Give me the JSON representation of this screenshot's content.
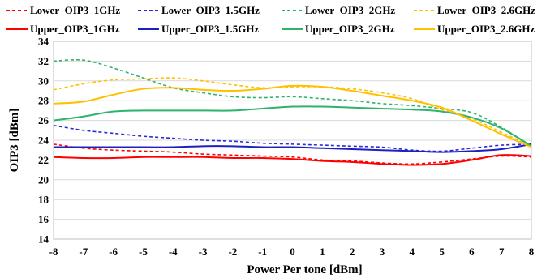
{
  "chart_data": {
    "type": "line",
    "title": "",
    "xlabel": "Power Per tone [dBm]",
    "ylabel": "OIP3 [dBm]",
    "xlim": [
      -8,
      8
    ],
    "ylim": [
      14,
      34
    ],
    "x_ticks": [
      "-8",
      "-7",
      "-6",
      "-5",
      "-4",
      "-3",
      "-2",
      "-1",
      "0",
      "1",
      "2",
      "3",
      "4",
      "5",
      "6",
      "7",
      "8"
    ],
    "y_ticks": [
      "14",
      "16",
      "18",
      "20",
      "22",
      "24",
      "26",
      "28",
      "30",
      "32",
      "34"
    ],
    "grid": "horizontal",
    "legend_position": "top",
    "x": [
      -8,
      -7,
      -6,
      -5,
      -4,
      -3,
      -2,
      -1,
      0,
      1,
      2,
      3,
      4,
      5,
      6,
      7,
      8
    ],
    "series": [
      {
        "name": "Lower_OIP3_1GHz",
        "color": "#ff0000",
        "style": "dashed",
        "values": [
          23.6,
          23.2,
          23.0,
          22.9,
          22.8,
          22.6,
          22.5,
          22.4,
          22.3,
          22.0,
          21.9,
          21.7,
          21.6,
          21.8,
          22.1,
          22.4,
          22.3
        ]
      },
      {
        "name": "Lower_OIP3_1.5GHz",
        "color": "#2b2bd4",
        "style": "dashed",
        "values": [
          25.5,
          25.0,
          24.7,
          24.4,
          24.2,
          24.0,
          23.9,
          23.7,
          23.6,
          23.5,
          23.4,
          23.3,
          23.0,
          22.9,
          23.2,
          23.5,
          23.6
        ]
      },
      {
        "name": "Lower_OIP3_2GHz",
        "color": "#2db36b",
        "style": "dashed",
        "values": [
          32.0,
          32.1,
          31.3,
          30.3,
          29.3,
          28.8,
          28.4,
          28.3,
          28.4,
          28.2,
          28.0,
          27.7,
          27.5,
          27.2,
          26.8,
          25.3,
          23.4
        ]
      },
      {
        "name": "Lower_OIP3_2.6GHz",
        "color": "#ffc000",
        "style": "dashed",
        "values": [
          29.1,
          29.7,
          30.1,
          30.2,
          30.3,
          30.0,
          29.6,
          29.3,
          29.4,
          29.4,
          29.2,
          28.8,
          28.2,
          27.1,
          26.2,
          24.8,
          23.4
        ]
      },
      {
        "name": "Upper_OIP3_1GHz",
        "color": "#ff0000",
        "style": "solid",
        "values": [
          22.3,
          22.2,
          22.2,
          22.3,
          22.3,
          22.3,
          22.2,
          22.2,
          22.1,
          21.9,
          21.8,
          21.6,
          21.5,
          21.6,
          22.0,
          22.5,
          22.4
        ]
      },
      {
        "name": "Upper_OIP3_1.5GHz",
        "color": "#1f1fbf",
        "style": "solid",
        "values": [
          23.3,
          23.3,
          23.3,
          23.3,
          23.3,
          23.4,
          23.4,
          23.3,
          23.3,
          23.2,
          23.1,
          23.0,
          22.9,
          22.8,
          22.9,
          23.1,
          23.6
        ]
      },
      {
        "name": "Upper_OIP3_2GHz",
        "color": "#2db36b",
        "style": "solid",
        "values": [
          26.0,
          26.4,
          26.9,
          27.0,
          27.0,
          27.0,
          27.0,
          27.2,
          27.4,
          27.4,
          27.3,
          27.2,
          27.1,
          26.9,
          26.3,
          25.2,
          23.4
        ]
      },
      {
        "name": "Upper_OIP3_2.6GHz",
        "color": "#ffc000",
        "style": "solid",
        "values": [
          27.7,
          27.9,
          28.6,
          29.2,
          29.3,
          29.1,
          29.0,
          29.2,
          29.5,
          29.4,
          29.0,
          28.5,
          28.0,
          27.3,
          26.0,
          24.6,
          23.3
        ]
      }
    ]
  }
}
